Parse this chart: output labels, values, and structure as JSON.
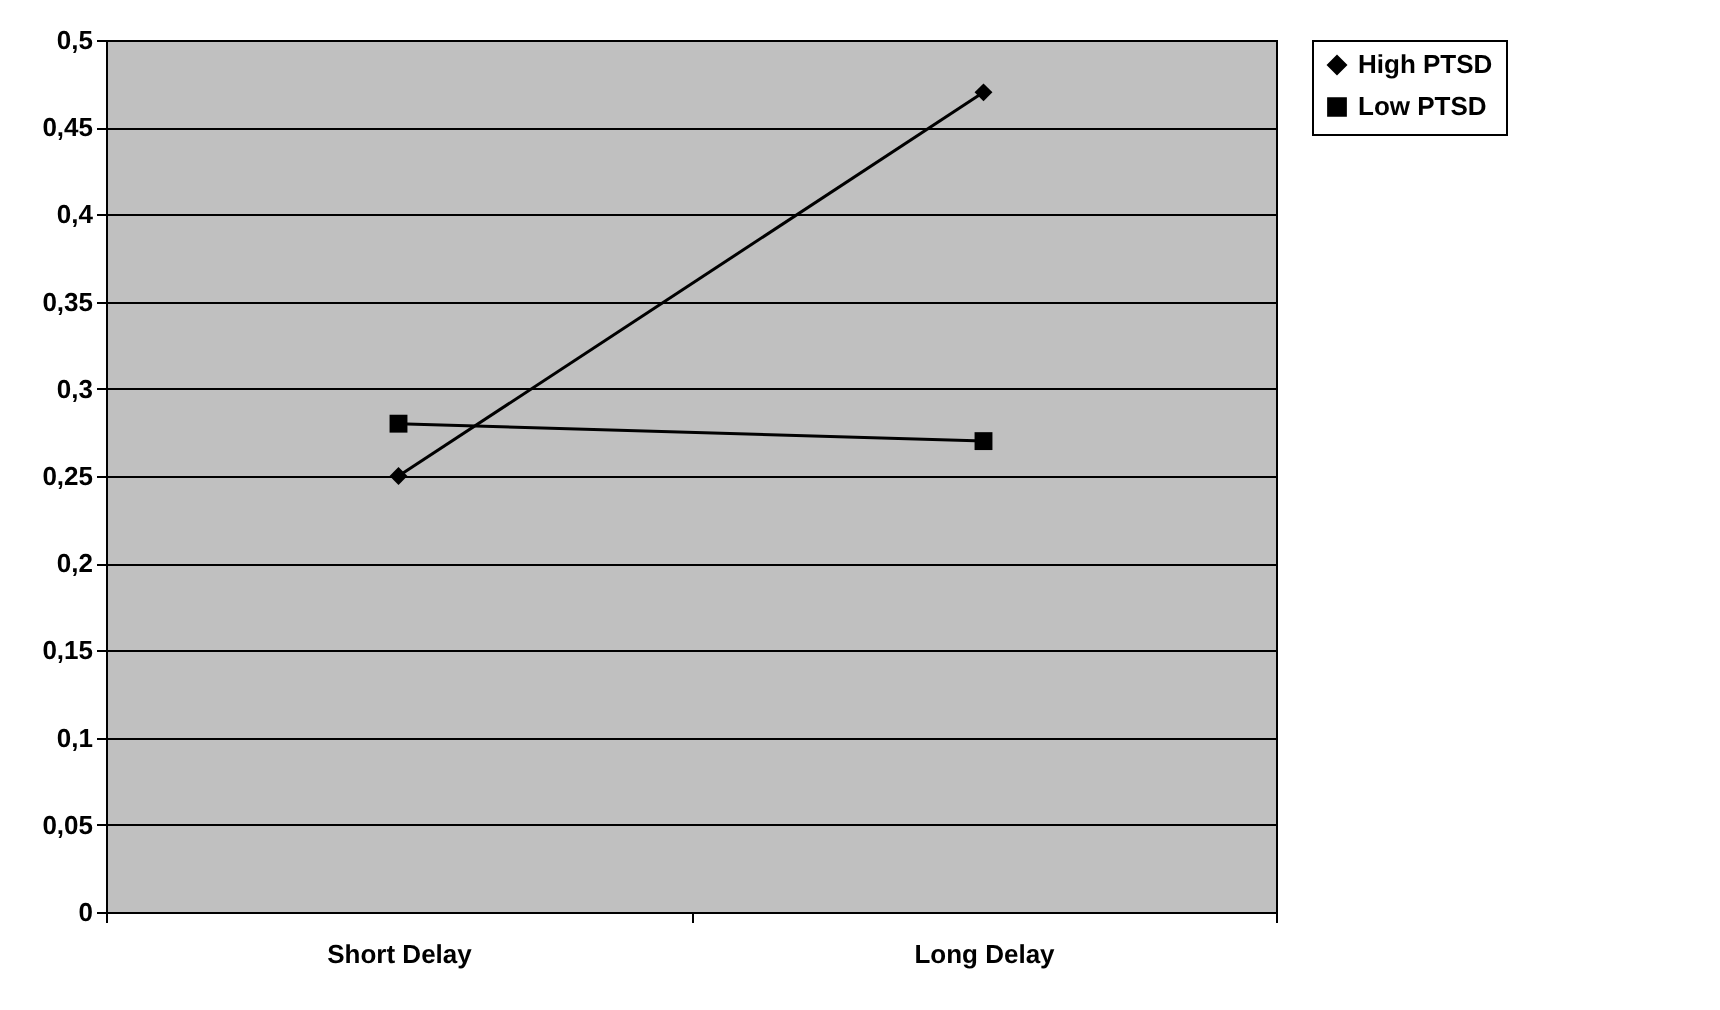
{
  "chart_data": {
    "type": "line",
    "categories": [
      "Short Delay",
      "Long Delay"
    ],
    "series": [
      {
        "name": "High PTSD",
        "color": "#000000",
        "marker": "diamond",
        "values": [
          0.25,
          0.47
        ]
      },
      {
        "name": "Low PTSD",
        "color": "#000000",
        "marker": "square",
        "values": [
          0.28,
          0.27
        ]
      }
    ],
    "ylim": [
      0,
      0.5
    ],
    "yticks": [
      {
        "value": 0,
        "label": "0"
      },
      {
        "value": 0.05,
        "label": "0,05"
      },
      {
        "value": 0.1,
        "label": "0,1"
      },
      {
        "value": 0.15,
        "label": "0,15"
      },
      {
        "value": 0.2,
        "label": "0,2"
      },
      {
        "value": 0.25,
        "label": "0,25"
      },
      {
        "value": 0.3,
        "label": "0,3"
      },
      {
        "value": 0.35,
        "label": "0,35"
      },
      {
        "value": 0.4,
        "label": "0,4"
      },
      {
        "value": 0.45,
        "label": "0,45"
      },
      {
        "value": 0.5,
        "label": "0,5"
      }
    ],
    "grid": "y",
    "legend": "right",
    "line_style": "solid"
  }
}
